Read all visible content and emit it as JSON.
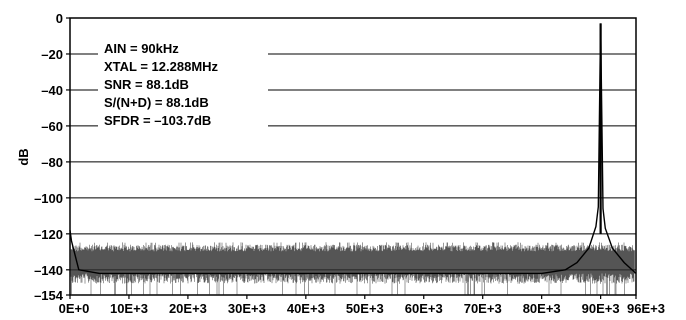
{
  "chart_data": {
    "type": "line",
    "title": "",
    "xlabel": "",
    "ylabel": "dB",
    "xlim": [
      0,
      96000
    ],
    "ylim": [
      -154,
      0
    ],
    "x_ticks": [
      0,
      10000,
      20000,
      30000,
      40000,
      50000,
      60000,
      70000,
      80000,
      90000,
      96000
    ],
    "x_tick_labels": [
      "0E+0",
      "10E+3",
      "20E+3",
      "30E+3",
      "40E+3",
      "50E+3",
      "60E+3",
      "70E+3",
      "80E+3",
      "90E+3",
      "96E+3"
    ],
    "y_ticks": [
      0,
      -20,
      -40,
      -60,
      -80,
      -100,
      -120,
      -140,
      -154
    ],
    "y_tick_labels": [
      "0",
      "–20",
      "–40",
      "–60",
      "–80",
      "–100",
      "–120",
      "–140",
      "–154"
    ],
    "grid": true,
    "annotations": [
      "AIN = 90kHz",
      "XTAL = 12.288MHz",
      "SNR = 88.1dB",
      "S/(N+D) = 88.1dB",
      "SFDR = –103.7dB"
    ],
    "series": [
      {
        "noise_floor_db": [
          -126,
          -144
        ],
        "spectrum": [
          [
            0,
            -118
          ],
          [
            250,
            -124
          ],
          [
            1500,
            -140
          ],
          [
            5000,
            -142
          ],
          [
            10000,
            -142
          ],
          [
            20000,
            -142
          ],
          [
            30000,
            -142
          ],
          [
            40000,
            -142
          ],
          [
            50000,
            -142
          ],
          [
            60000,
            -142
          ],
          [
            70000,
            -142
          ],
          [
            80000,
            -142
          ],
          [
            84000,
            -140
          ],
          [
            86000,
            -136
          ],
          [
            88000,
            -128
          ],
          [
            89200,
            -116
          ],
          [
            89600,
            -105
          ],
          [
            90000,
            -3
          ],
          [
            90400,
            -106
          ],
          [
            90800,
            -117
          ],
          [
            92000,
            -128
          ],
          [
            94000,
            -136
          ],
          [
            96000,
            -142
          ]
        ]
      }
    ]
  }
}
